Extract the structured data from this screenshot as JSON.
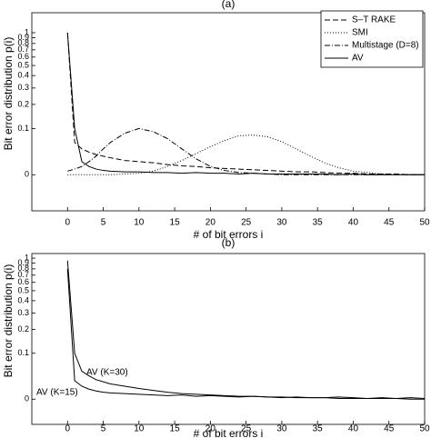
{
  "chart_data": [
    {
      "type": "line",
      "title": "(a)",
      "x_label": "# of bit errors i",
      "y_label": "Bit error distribution p(i)",
      "yscale": "log1p",
      "legend": "upper right",
      "grid": false,
      "xlim": [
        -5,
        50
      ],
      "xticks": [
        0,
        5,
        10,
        15,
        20,
        25,
        30,
        35,
        40,
        45,
        50
      ],
      "ylim": [
        -0.035,
        1.5
      ],
      "yticks": [
        0,
        0.1,
        0.2,
        0.3,
        0.4,
        0.5,
        0.6,
        0.7,
        0.8,
        0.9,
        1
      ],
      "x": [
        0,
        1,
        2,
        3,
        4,
        5,
        6,
        8,
        10,
        12,
        14,
        16,
        18,
        20,
        22,
        24,
        26,
        28,
        30,
        32,
        34,
        36,
        38,
        40,
        42,
        44,
        46,
        48,
        50
      ],
      "series": [
        {
          "name": "S–T RAKE",
          "color": "#000000",
          "dash": "dashed",
          "values": [
            1,
            0.06,
            0.045,
            0.038,
            0.033,
            0.03,
            0.027,
            0.022,
            0.02,
            0.018,
            0.015,
            0.013,
            0.012,
            0.01,
            0.009,
            0.008,
            0.007,
            0.006,
            0.005,
            0.004,
            0.004,
            0.003,
            0.002,
            0.002,
            0.001,
            0.001,
            0.001,
            0,
            0
          ]
        },
        {
          "name": "SMI",
          "color": "#000000",
          "dash": "dotted",
          "values": [
            0,
            0,
            0,
            0,
            0,
            0,
            0,
            0.001,
            0.002,
            0.005,
            0.012,
            0.022,
            0.035,
            0.05,
            0.065,
            0.078,
            0.08,
            0.075,
            0.062,
            0.045,
            0.03,
            0.018,
            0.01,
            0.005,
            0.003,
            0.001,
            0,
            0,
            0
          ]
        },
        {
          "name": "Multistage (D=8)",
          "color": "#000000",
          "dash": "dashdot",
          "values": [
            0.005,
            0.008,
            0.012,
            0.02,
            0.03,
            0.045,
            0.06,
            0.085,
            0.1,
            0.09,
            0.07,
            0.045,
            0.025,
            0.012,
            0.006,
            0.003,
            0.002,
            0.001,
            0,
            0,
            0,
            0,
            0,
            0,
            0,
            0,
            0,
            0,
            0
          ]
        },
        {
          "name": "AV",
          "color": "#000000",
          "dash": "solid",
          "values": [
            1,
            0.1,
            0.02,
            0.012,
            0.008,
            0.006,
            0.005,
            0.004,
            0.004,
            0.003,
            0.003,
            0.002,
            0.003,
            0.002,
            0.002,
            0.001,
            0.002,
            0.001,
            0.001,
            0.001,
            0.001,
            0.001,
            0,
            0.001,
            0,
            0,
            0,
            0,
            0
          ]
        }
      ]
    },
    {
      "type": "line",
      "title": "(b)",
      "x_label": "# of bit errors i",
      "y_label": "Bit error distribution p(i)",
      "yscale": "log1p",
      "grid": false,
      "xlim": [
        -5,
        50
      ],
      "xticks": [
        0,
        5,
        10,
        15,
        20,
        25,
        30,
        35,
        40,
        45,
        50
      ],
      "ylim": [
        -0.027,
        1.1
      ],
      "yticks": [
        0,
        0.1,
        0.2,
        0.3,
        0.4,
        0.5,
        0.6,
        0.7,
        0.8,
        0.9,
        1
      ],
      "x": [
        0,
        1,
        2,
        3,
        4,
        5,
        6,
        8,
        10,
        12,
        14,
        16,
        18,
        20,
        22,
        24,
        26,
        28,
        30,
        32,
        34,
        36,
        38,
        40,
        42,
        44,
        46,
        48,
        50
      ],
      "series": [
        {
          "name": "AV (K=30)",
          "color": "#000000",
          "dash": "solid",
          "values": [
            0.95,
            0.1,
            0.05,
            0.04,
            0.032,
            0.028,
            0.024,
            0.02,
            0.016,
            0.013,
            0.01,
            0.008,
            0.007,
            0.006,
            0.005,
            0.004,
            0.004,
            0.003,
            0.003,
            0.002,
            0.002,
            0.002,
            0.001,
            0.001,
            0.001,
            0.001,
            0.001,
            0,
            0
          ]
        },
        {
          "name": "AV (K=15)",
          "color": "#000000",
          "dash": "solid",
          "values": [
            0.8,
            0.03,
            0.02,
            0.015,
            0.012,
            0.01,
            0.009,
            0.008,
            0.007,
            0.006,
            0.005,
            0.006,
            0.004,
            0.005,
            0.004,
            0.003,
            0.004,
            0.003,
            0.002,
            0.003,
            0.002,
            0.002,
            0.003,
            0.002,
            0.001,
            0.002,
            0.001,
            0.002,
            0.001
          ]
        }
      ]
    }
  ]
}
